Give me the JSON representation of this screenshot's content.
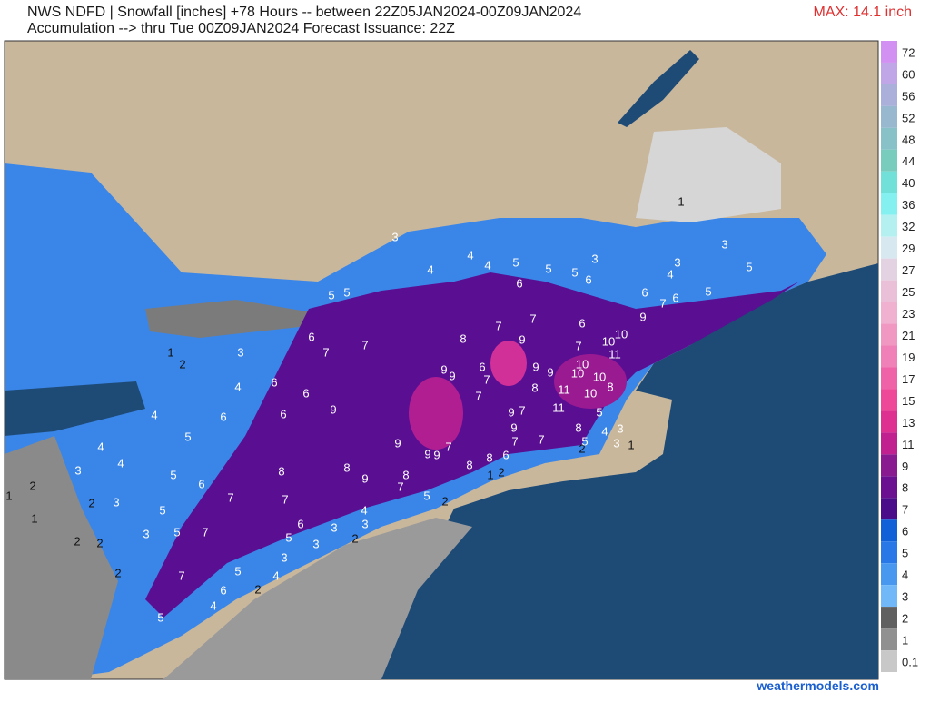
{
  "header": {
    "line1": "NWS NDFD | Snowfall [inches] +78 Hours -- between 22Z05JAN2024-00Z09JAN2024",
    "line2": "Accumulation --> thru Tue 00Z09JAN2024   Forecast Issuance: 22Z",
    "max": "MAX: 14.1 inch"
  },
  "colorbar": {
    "levels": [
      72,
      60,
      56,
      52,
      48,
      44,
      40,
      36,
      32,
      29,
      27,
      25,
      23,
      21,
      19,
      17,
      15,
      13,
      11,
      9,
      8,
      7,
      6,
      5,
      4,
      3,
      2,
      1,
      0.1
    ],
    "colors": [
      "#d290f2",
      "#c0a6e6",
      "#aab0da",
      "#98b8d0",
      "#88c2c8",
      "#78ccbe",
      "#70e0d8",
      "#84f0f0",
      "#b4f0f0",
      "#d8e8f0",
      "#e2d2e2",
      "#eac0d8",
      "#f0b0d0",
      "#f098c2",
      "#f080b8",
      "#f062a8",
      "#ee4898",
      "#de3090",
      "#c02090",
      "#8a1a90",
      "#6a1090",
      "#4a0c88",
      "#1060d8",
      "#2878e8",
      "#4898f0",
      "#70b8f8",
      "#606060",
      "#909090",
      "#c8c8c8"
    ]
  },
  "map": {
    "labels": [
      3,
      4,
      4,
      5,
      5,
      5,
      3,
      6,
      4,
      5,
      5,
      6,
      6,
      7,
      6,
      5,
      3,
      4,
      3,
      5,
      1,
      3,
      1,
      2,
      6,
      7,
      7,
      8,
      7,
      7,
      6,
      9,
      7,
      10,
      10,
      9,
      11,
      9,
      9,
      6,
      7,
      9,
      9,
      10,
      10,
      10,
      11,
      8,
      10,
      8,
      7,
      11,
      9,
      7,
      9,
      6,
      6,
      9,
      6,
      6,
      4,
      4,
      5,
      9,
      9,
      9,
      7,
      7,
      7,
      8,
      4,
      3,
      5,
      8,
      8,
      9,
      8,
      8,
      8,
      6,
      7,
      6,
      5,
      7,
      7,
      7,
      5,
      5,
      6,
      3,
      5,
      3,
      3,
      4,
      3,
      2,
      5,
      2,
      4,
      4,
      3,
      2,
      3,
      3,
      7,
      5,
      4,
      2,
      6,
      4,
      5,
      2,
      1,
      1,
      2,
      2,
      2,
      1,
      2,
      2,
      5,
      3,
      1
    ]
  },
  "footer": "weathermodels.com"
}
